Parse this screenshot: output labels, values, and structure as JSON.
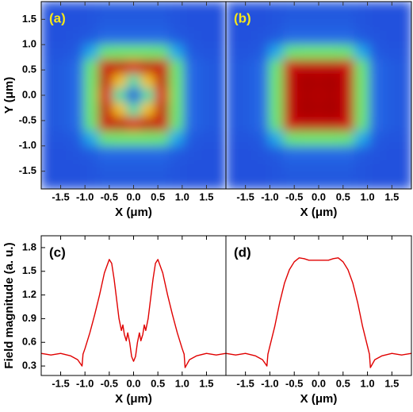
{
  "chart_data": [
    {
      "type": "heatmap",
      "label": "(a)",
      "xlabel": "X (μm)",
      "ylabel": "Y (μm)",
      "xlim": [
        -1.9,
        1.9
      ],
      "ylim": [
        -1.85,
        1.85
      ],
      "xticks": [
        -1.5,
        {
          "value": -1,
          "label": "-1.0"
        },
        -0.5,
        {
          "value": 0,
          "label": "0.0"
        },
        0.5,
        {
          "value": 1,
          "label": "1.0"
        },
        1.5
      ],
      "yticks": [
        -1.5,
        {
          "value": -1,
          "label": "-1.0"
        },
        -0.5,
        {
          "value": 0,
          "label": "0.0"
        },
        0.5,
        {
          "value": 1,
          "label": "1.0"
        },
        1.5
      ],
      "colorscale": [
        [
          0.35,
          "#1a3bd6"
        ],
        [
          0.55,
          "#2b7bea"
        ],
        [
          0.75,
          "#19d6e6"
        ],
        [
          0.95,
          "#6fe86a"
        ],
        [
          1.1,
          "#f0e020"
        ],
        [
          1.25,
          "#ff9010"
        ],
        [
          1.4,
          "#f02010"
        ],
        [
          1.6,
          "#c00808"
        ],
        [
          1.75,
          "#7a0000"
        ]
      ],
      "z": [
        [
          0.42,
          0.42,
          0.42,
          0.43,
          0.44,
          0.44,
          0.44,
          0.44,
          0.44,
          0.43,
          0.42,
          0.42,
          0.42
        ],
        [
          0.42,
          0.42,
          0.42,
          0.43,
          0.45,
          0.45,
          0.45,
          0.45,
          0.45,
          0.43,
          0.42,
          0.42,
          0.42
        ],
        [
          0.42,
          0.42,
          0.43,
          0.45,
          0.5,
          0.5,
          0.5,
          0.5,
          0.5,
          0.45,
          0.43,
          0.42,
          0.42
        ],
        [
          0.43,
          0.43,
          0.45,
          0.65,
          0.93,
          0.95,
          0.95,
          0.95,
          0.93,
          0.65,
          0.45,
          0.43,
          0.43
        ],
        [
          0.44,
          0.45,
          0.5,
          0.93,
          1.55,
          1.6,
          1.47,
          1.6,
          1.55,
          0.93,
          0.5,
          0.45,
          0.44
        ],
        [
          0.44,
          0.45,
          0.5,
          0.95,
          1.6,
          1.16,
          0.85,
          1.16,
          1.6,
          0.95,
          0.5,
          0.45,
          0.44
        ],
        [
          0.44,
          0.45,
          0.5,
          0.95,
          1.47,
          0.85,
          0.42,
          0.85,
          1.47,
          0.95,
          0.5,
          0.45,
          0.44
        ],
        [
          0.44,
          0.45,
          0.5,
          0.95,
          1.6,
          1.16,
          0.85,
          1.16,
          1.6,
          0.95,
          0.5,
          0.45,
          0.44
        ],
        [
          0.44,
          0.45,
          0.5,
          0.93,
          1.55,
          1.6,
          1.47,
          1.6,
          1.55,
          0.93,
          0.5,
          0.45,
          0.44
        ],
        [
          0.43,
          0.43,
          0.45,
          0.65,
          0.93,
          0.95,
          0.95,
          0.95,
          0.93,
          0.65,
          0.45,
          0.43,
          0.43
        ],
        [
          0.42,
          0.42,
          0.43,
          0.45,
          0.5,
          0.5,
          0.5,
          0.5,
          0.5,
          0.45,
          0.43,
          0.42,
          0.42
        ],
        [
          0.42,
          0.42,
          0.42,
          0.43,
          0.45,
          0.45,
          0.45,
          0.45,
          0.45,
          0.43,
          0.42,
          0.42,
          0.42
        ],
        [
          0.42,
          0.42,
          0.42,
          0.43,
          0.44,
          0.44,
          0.44,
          0.44,
          0.44,
          0.43,
          0.42,
          0.42,
          0.42
        ]
      ]
    },
    {
      "type": "heatmap",
      "label": "(b)",
      "xlabel": "X (μm)",
      "xlim": [
        -1.9,
        1.9
      ],
      "ylim": [
        -1.85,
        1.85
      ],
      "xticks": [
        -1.5,
        {
          "value": -1,
          "label": "-1.0"
        },
        -0.5,
        {
          "value": 0,
          "label": "0.0"
        },
        0.5,
        {
          "value": 1,
          "label": "1.0"
        },
        1.5
      ],
      "colorscale": [
        [
          0.35,
          "#1a3bd6"
        ],
        [
          0.55,
          "#2b7bea"
        ],
        [
          0.75,
          "#19d6e6"
        ],
        [
          0.95,
          "#6fe86a"
        ],
        [
          1.1,
          "#f0e020"
        ],
        [
          1.25,
          "#ff9010"
        ],
        [
          1.4,
          "#f02010"
        ],
        [
          1.6,
          "#c00808"
        ],
        [
          1.75,
          "#7a0000"
        ]
      ],
      "z": [
        [
          0.42,
          0.42,
          0.42,
          0.43,
          0.44,
          0.44,
          0.44,
          0.44,
          0.44,
          0.43,
          0.42,
          0.42,
          0.42
        ],
        [
          0.42,
          0.42,
          0.42,
          0.43,
          0.45,
          0.45,
          0.45,
          0.45,
          0.45,
          0.43,
          0.42,
          0.42,
          0.42
        ],
        [
          0.42,
          0.42,
          0.43,
          0.45,
          0.5,
          0.5,
          0.5,
          0.5,
          0.5,
          0.45,
          0.43,
          0.42,
          0.42
        ],
        [
          0.43,
          0.43,
          0.45,
          0.65,
          0.93,
          0.95,
          0.95,
          0.95,
          0.93,
          0.65,
          0.45,
          0.43,
          0.43
        ],
        [
          0.44,
          0.45,
          0.5,
          0.93,
          1.55,
          1.6,
          1.59,
          1.6,
          1.55,
          0.93,
          0.5,
          0.45,
          0.44
        ],
        [
          0.44,
          0.45,
          0.5,
          0.95,
          1.6,
          1.65,
          1.64,
          1.65,
          1.6,
          0.95,
          0.5,
          0.45,
          0.44
        ],
        [
          0.44,
          0.45,
          0.5,
          0.95,
          1.59,
          1.64,
          1.63,
          1.64,
          1.59,
          0.95,
          0.5,
          0.45,
          0.44
        ],
        [
          0.44,
          0.45,
          0.5,
          0.95,
          1.6,
          1.65,
          1.64,
          1.65,
          1.6,
          0.95,
          0.5,
          0.45,
          0.44
        ],
        [
          0.44,
          0.45,
          0.5,
          0.93,
          1.55,
          1.6,
          1.59,
          1.6,
          1.55,
          0.93,
          0.5,
          0.45,
          0.44
        ],
        [
          0.43,
          0.43,
          0.45,
          0.65,
          0.93,
          0.95,
          0.95,
          0.95,
          0.93,
          0.65,
          0.45,
          0.43,
          0.43
        ],
        [
          0.42,
          0.42,
          0.43,
          0.45,
          0.5,
          0.5,
          0.5,
          0.5,
          0.5,
          0.45,
          0.43,
          0.42,
          0.42
        ],
        [
          0.42,
          0.42,
          0.42,
          0.43,
          0.45,
          0.45,
          0.45,
          0.45,
          0.45,
          0.43,
          0.42,
          0.42,
          0.42
        ],
        [
          0.42,
          0.42,
          0.42,
          0.43,
          0.44,
          0.44,
          0.44,
          0.44,
          0.44,
          0.43,
          0.42,
          0.42,
          0.42
        ]
      ]
    },
    {
      "type": "line",
      "label": "(c)",
      "xlabel": "X (μm)",
      "ylabel": "Field magnitude (a. u.)",
      "color": "#e00000",
      "xlim": [
        -1.9,
        1.9
      ],
      "ylim": [
        0.18,
        1.95
      ],
      "xticks": [
        -1.5,
        {
          "value": -1,
          "label": "-1.0"
        },
        -0.5,
        {
          "value": 0,
          "label": "0.0"
        },
        0.5,
        {
          "value": 1,
          "label": "1.0"
        },
        1.5
      ],
      "yticks": [
        0.3,
        0.6,
        0.9,
        1.2,
        1.5,
        1.8
      ],
      "x": [
        -1.9,
        -1.7,
        -1.5,
        -1.3,
        -1.15,
        -1.06,
        -1.04,
        -1.0,
        -0.9,
        -0.8,
        -0.7,
        -0.6,
        -0.5,
        -0.45,
        -0.4,
        -0.35,
        -0.3,
        -0.25,
        -0.22,
        -0.19,
        -0.15,
        -0.12,
        -0.08,
        -0.04,
        0,
        0.04,
        0.08,
        0.12,
        0.15,
        0.19,
        0.22,
        0.25,
        0.3,
        0.35,
        0.4,
        0.45,
        0.5,
        0.6,
        0.7,
        0.8,
        0.9,
        1.0,
        1.04,
        1.06,
        1.15,
        1.3,
        1.5,
        1.7,
        1.9
      ],
      "values": [
        0.46,
        0.44,
        0.46,
        0.43,
        0.38,
        0.3,
        0.45,
        0.52,
        0.72,
        0.95,
        1.2,
        1.48,
        1.65,
        1.6,
        1.4,
        1.15,
        0.9,
        0.75,
        0.82,
        0.7,
        0.62,
        0.72,
        0.6,
        0.42,
        0.36,
        0.42,
        0.6,
        0.72,
        0.62,
        0.7,
        0.82,
        0.75,
        0.9,
        1.15,
        1.4,
        1.6,
        1.65,
        1.48,
        1.2,
        0.95,
        0.72,
        0.52,
        0.45,
        0.28,
        0.38,
        0.43,
        0.46,
        0.44,
        0.46
      ]
    },
    {
      "type": "line",
      "label": "(d)",
      "xlabel": "X (μm)",
      "color": "#e00000",
      "xlim": [
        -1.9,
        1.9
      ],
      "ylim": [
        0.18,
        1.95
      ],
      "xticks": [
        -1.5,
        {
          "value": -1,
          "label": "-1.0"
        },
        -0.5,
        {
          "value": 0,
          "label": "0.0"
        },
        0.5,
        {
          "value": 1,
          "label": "1.0"
        },
        1.5
      ],
      "x": [
        -1.9,
        -1.7,
        -1.5,
        -1.3,
        -1.15,
        -1.06,
        -1.04,
        -1.0,
        -0.9,
        -0.8,
        -0.7,
        -0.6,
        -0.5,
        -0.4,
        -0.3,
        -0.2,
        -0.1,
        0,
        0.1,
        0.2,
        0.3,
        0.4,
        0.5,
        0.6,
        0.7,
        0.8,
        0.9,
        1.0,
        1.04,
        1.06,
        1.15,
        1.3,
        1.5,
        1.7,
        1.9
      ],
      "values": [
        0.46,
        0.44,
        0.46,
        0.43,
        0.38,
        0.3,
        0.45,
        0.55,
        0.8,
        1.1,
        1.35,
        1.52,
        1.62,
        1.67,
        1.66,
        1.64,
        1.64,
        1.64,
        1.64,
        1.64,
        1.66,
        1.67,
        1.62,
        1.52,
        1.35,
        1.1,
        0.8,
        0.55,
        0.45,
        0.28,
        0.38,
        0.43,
        0.46,
        0.44,
        0.46
      ]
    }
  ]
}
